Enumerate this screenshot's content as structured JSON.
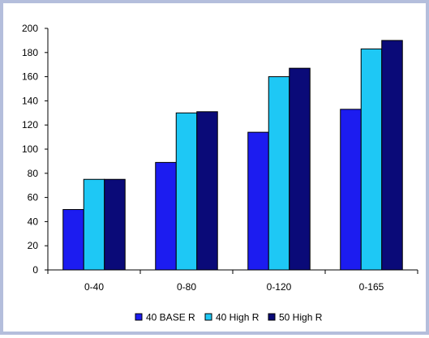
{
  "chart_data": {
    "type": "bar",
    "title": "",
    "xlabel": "",
    "ylabel": "",
    "categories": [
      "0-40",
      "0-80",
      "0-120",
      "0-165"
    ],
    "series": [
      {
        "name": "40 BASE R",
        "color": "#1c1cf0",
        "values": [
          50,
          89,
          114,
          133
        ]
      },
      {
        "name": "40 High R",
        "color": "#1ec8f5",
        "values": [
          75,
          130,
          160,
          183
        ]
      },
      {
        "name": "50 High R",
        "color": "#0a0a78",
        "values": [
          75,
          131,
          167,
          190
        ]
      }
    ],
    "ylim": [
      0,
      200
    ],
    "yticks": [
      0,
      20,
      40,
      60,
      80,
      100,
      120,
      140,
      160,
      180,
      200
    ],
    "grid": false,
    "legend_position": "bottom"
  }
}
